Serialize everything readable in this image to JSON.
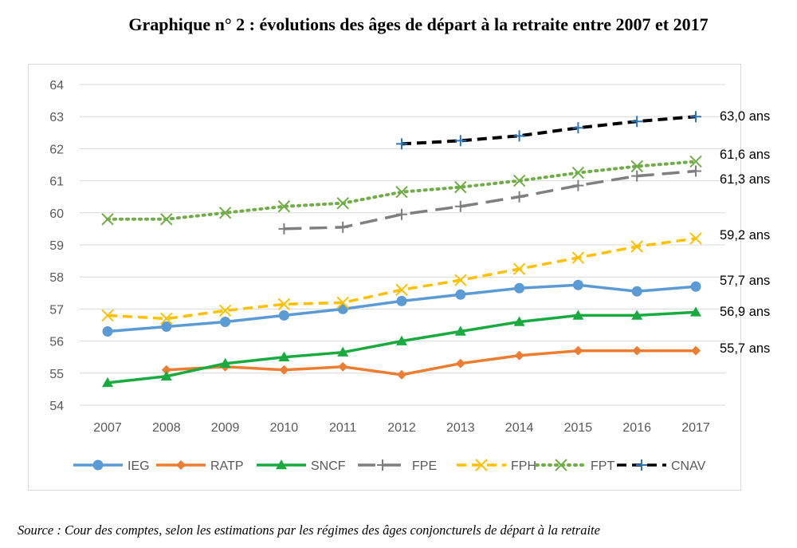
{
  "title": "Graphique n° 2 : évolutions des âges de départ à la retraite entre 2007 et 2017",
  "source": "Source : Cour des comptes, selon les estimations par les régimes des âges conjoncturels de départ à la retraite",
  "chart_data": {
    "type": "line",
    "title": "Graphique n° 2 : évolutions des âges de départ à la retraite entre 2007 et 2017",
    "xlabel": "",
    "ylabel": "",
    "x": [
      "2007",
      "2008",
      "2009",
      "2010",
      "2011",
      "2012",
      "2013",
      "2014",
      "2015",
      "2016",
      "2017"
    ],
    "ylim": [
      54,
      64
    ],
    "yticks": [
      "54",
      "55",
      "56",
      "57",
      "58",
      "59",
      "60",
      "61",
      "62",
      "63",
      "64"
    ],
    "grid": true,
    "legend_position": "bottom",
    "series": [
      {
        "name": "IEG",
        "color": "#5b9bd5",
        "marker": "circle",
        "dash": "solid",
        "values": [
          56.3,
          56.45,
          56.6,
          56.8,
          57.0,
          57.25,
          57.45,
          57.65,
          57.75,
          57.55,
          57.7
        ],
        "end_label": "57,7 ans"
      },
      {
        "name": "RATP",
        "color": "#ed7d31",
        "marker": "diamond",
        "dash": "solid",
        "values": [
          null,
          55.1,
          55.2,
          55.1,
          55.2,
          54.95,
          55.3,
          55.55,
          55.7,
          55.7,
          55.7
        ],
        "end_label": "55,7 ans"
      },
      {
        "name": "SNCF",
        "color": "#1aab40",
        "marker": "triangle",
        "dash": "solid",
        "values": [
          54.7,
          54.9,
          55.3,
          55.5,
          55.65,
          56.0,
          56.3,
          56.6,
          56.8,
          56.8,
          56.9
        ],
        "end_label": "56,9 ans"
      },
      {
        "name": "FPE",
        "color": "#7f7f7f",
        "marker": "plus",
        "dash": "longdash",
        "values": [
          null,
          null,
          null,
          59.5,
          59.55,
          59.95,
          60.2,
          60.5,
          60.85,
          61.15,
          61.3
        ],
        "end_label": "61,3 ans"
      },
      {
        "name": "FPH",
        "color": "#ffc000",
        "marker": "x",
        "dash": "dash",
        "values": [
          56.8,
          56.7,
          56.95,
          57.15,
          57.2,
          57.6,
          57.9,
          58.25,
          58.6,
          58.95,
          59.2
        ],
        "end_label": "59,2 ans"
      },
      {
        "name": "FPT",
        "color": "#70ad47",
        "marker": "x",
        "dash": "dot",
        "values": [
          59.8,
          59.8,
          60.0,
          60.2,
          60.3,
          60.65,
          60.8,
          61.0,
          61.25,
          61.45,
          61.6
        ],
        "end_label": "61,6 ans"
      },
      {
        "name": "CNAV",
        "color": "#000000",
        "marker": "plus",
        "dash": "dash",
        "values": [
          null,
          null,
          null,
          null,
          null,
          62.15,
          62.25,
          62.4,
          62.65,
          62.85,
          63.0
        ],
        "end_label": "63,0 ans"
      }
    ]
  }
}
